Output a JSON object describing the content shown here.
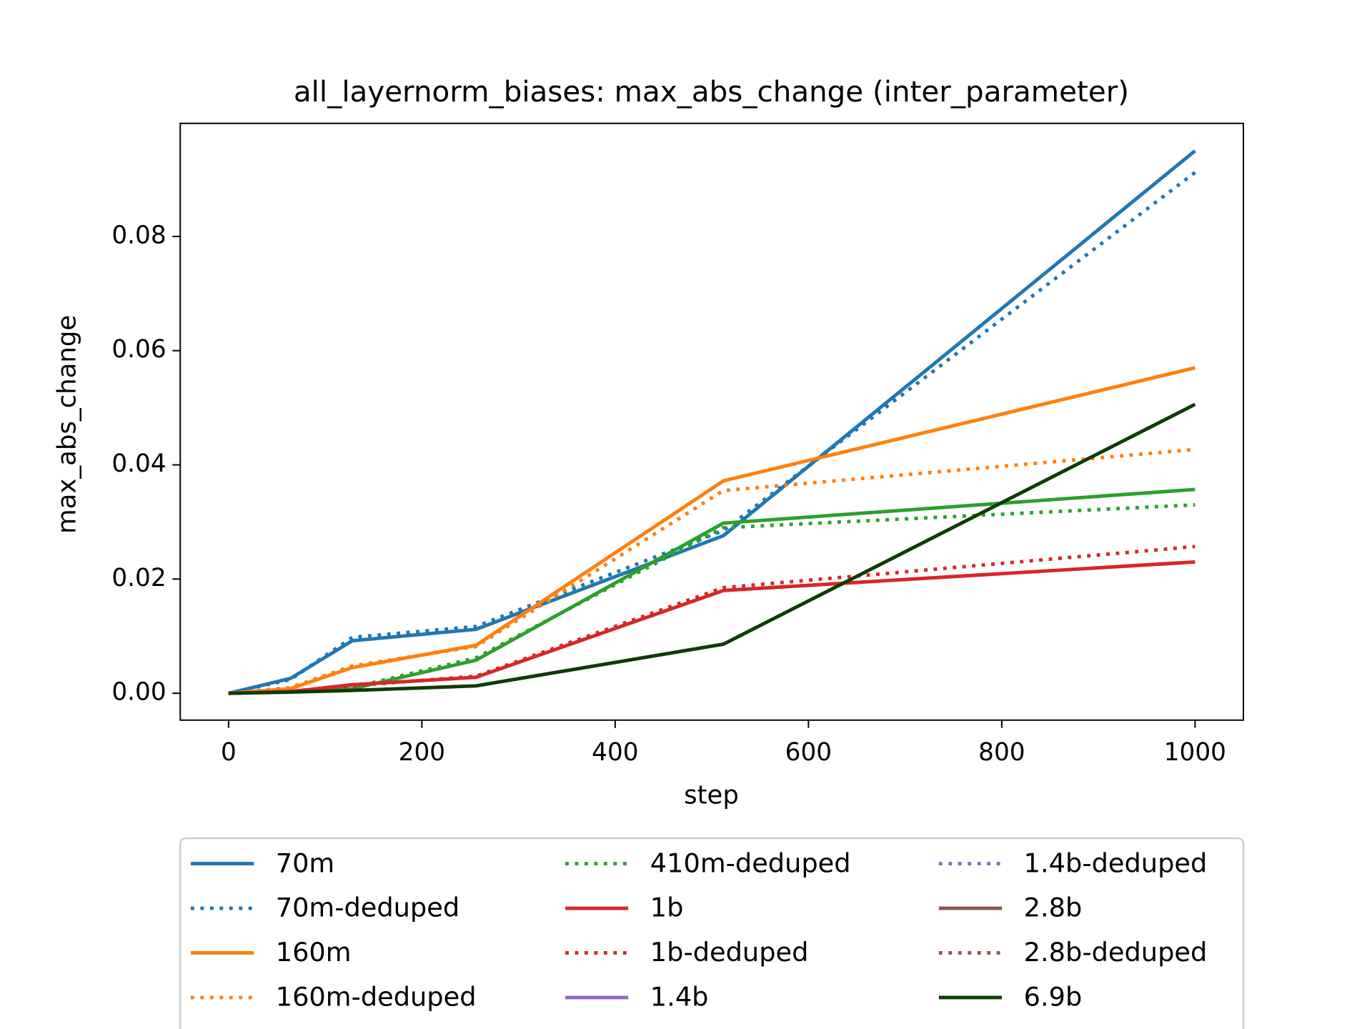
{
  "chart_data": {
    "type": "line",
    "title": "all_layernorm_biases: max_abs_change (inter_parameter)",
    "xlabel": "step",
    "ylabel": "max_abs_change",
    "x": [
      0,
      64,
      128,
      256,
      512,
      1000
    ],
    "xlim": [
      -50,
      1050
    ],
    "xticks": [
      0,
      200,
      400,
      600,
      800,
      1000
    ],
    "ylim": [
      -0.0047,
      0.0998
    ],
    "yticks": [
      {
        "value": 0,
        "label": "0.00"
      },
      {
        "value": 0.02,
        "label": "0.02"
      },
      {
        "value": 0.04,
        "label": "0.04"
      },
      {
        "value": 0.06,
        "label": "0.06"
      },
      {
        "value": 0.08,
        "label": "0.08"
      }
    ],
    "series": [
      {
        "name": "70m",
        "color": "#1f77b4",
        "style": "solid",
        "values": [
          0,
          0.0026,
          0.0092,
          0.0112,
          0.0276,
          0.095
        ]
      },
      {
        "name": "70m-deduped",
        "color": "#1f77b4",
        "style": "dotted",
        "values": [
          0,
          0.0024,
          0.0098,
          0.0117,
          0.0285,
          0.0912
        ]
      },
      {
        "name": "160m",
        "color": "#ff7f0e",
        "style": "solid",
        "values": [
          0,
          0.0008,
          0.0045,
          0.0084,
          0.0372,
          0.057
        ]
      },
      {
        "name": "160m-deduped",
        "color": "#ff7f0e",
        "style": "dotted",
        "values": [
          0,
          0.001,
          0.0048,
          0.0082,
          0.0355,
          0.0427
        ]
      },
      {
        "color": "#2ca02c",
        "style": "solid",
        "values": [
          0,
          0.0003,
          0.0008,
          0.0058,
          0.0298,
          0.0357
        ]
      },
      {
        "name": "410m-deduped",
        "color": "#2ca02c",
        "style": "dotted",
        "values": [
          0,
          0.0003,
          0.001,
          0.0062,
          0.029,
          0.033
        ]
      },
      {
        "name": "1b",
        "color": "#d62728",
        "style": "solid",
        "values": [
          0,
          0.0003,
          0.0015,
          0.0028,
          0.018,
          0.023
        ]
      },
      {
        "name": "1b-deduped",
        "color": "#d62728",
        "style": "dotted",
        "values": [
          0,
          0.0003,
          0.0013,
          0.003,
          0.0185,
          0.0257
        ]
      },
      {
        "name": "1.4b",
        "color": "#9467bd",
        "style": "solid",
        "values": [
          null,
          null,
          null,
          null,
          null,
          null
        ]
      },
      {
        "name": "1.4b-deduped",
        "color": "#9467bd",
        "style": "dotted",
        "values": [
          null,
          null,
          null,
          null,
          null,
          null
        ]
      },
      {
        "name": "2.8b",
        "color": "#8c564b",
        "style": "solid",
        "values": [
          null,
          null,
          null,
          null,
          null,
          null
        ]
      },
      {
        "name": "2.8b-deduped",
        "color": "#8c564b",
        "style": "dotted",
        "values": [
          null,
          null,
          null,
          null,
          null,
          null
        ]
      },
      {
        "name": "6.9b",
        "color": "#0e3b06",
        "style": "solid",
        "values": [
          0,
          0.0002,
          0.0005,
          0.0013,
          0.0086,
          0.0506
        ]
      }
    ]
  }
}
